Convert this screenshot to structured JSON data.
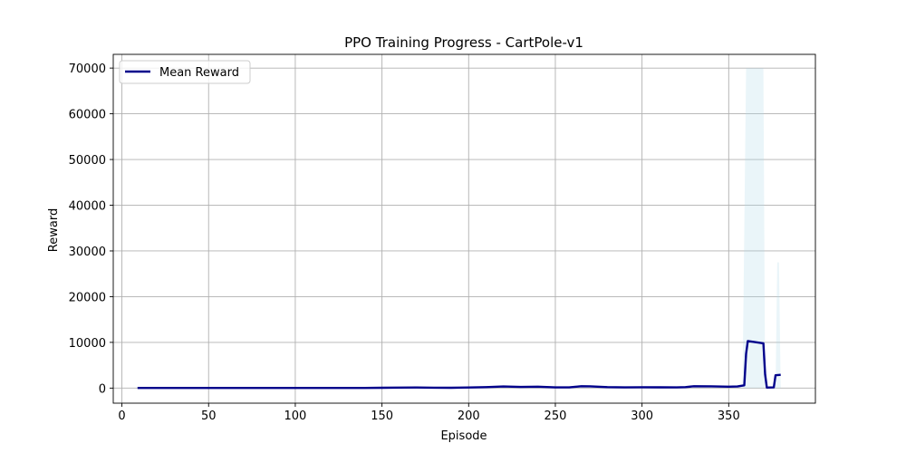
{
  "chart_data": {
    "type": "line",
    "title": "PPO Training Progress - CartPole-v1",
    "xlabel": "Episode",
    "ylabel": "Reward",
    "xlim": [
      -5,
      400
    ],
    "ylim": [
      -3300,
      73000
    ],
    "xticks": [
      0,
      50,
      100,
      150,
      200,
      250,
      300,
      350
    ],
    "yticks": [
      0,
      10000,
      20000,
      30000,
      40000,
      50000,
      60000,
      70000
    ],
    "grid": true,
    "legend": {
      "placement": "upper-left",
      "entries": [
        "Mean Reward"
      ]
    },
    "colors": {
      "line": "#00008b",
      "band": "#add8e6",
      "grid": "#b0b0b0"
    },
    "series": [
      {
        "name": "Mean Reward",
        "x": [
          9,
          20,
          30,
          40,
          50,
          60,
          70,
          80,
          90,
          100,
          110,
          120,
          130,
          140,
          150,
          160,
          170,
          180,
          190,
          200,
          210,
          220,
          230,
          240,
          250,
          258,
          265,
          270,
          280,
          290,
          300,
          310,
          320,
          325,
          330,
          340,
          350,
          355,
          359,
          360,
          361,
          370,
          371,
          372,
          376,
          377,
          380
        ],
        "values": [
          20,
          22,
          25,
          22,
          30,
          22,
          25,
          25,
          25,
          28,
          25,
          30,
          25,
          30,
          60,
          100,
          120,
          80,
          60,
          120,
          200,
          350,
          250,
          300,
          150,
          150,
          400,
          380,
          200,
          150,
          180,
          160,
          150,
          200,
          400,
          380,
          300,
          350,
          600,
          7500,
          10300,
          9800,
          3000,
          100,
          150,
          2800,
          2900
        ]
      }
    ],
    "band": {
      "x": [
        9,
        50,
        100,
        150,
        200,
        220,
        240,
        258,
        265,
        270,
        300,
        320,
        330,
        350,
        358,
        360,
        361,
        370,
        371,
        372,
        376,
        377,
        378,
        379,
        380
      ],
      "lower": [
        0,
        0,
        0,
        0,
        50,
        100,
        80,
        50,
        100,
        100,
        50,
        50,
        100,
        50,
        100,
        0,
        0,
        0,
        0,
        0,
        0,
        0,
        0,
        0,
        0
      ],
      "upper": [
        60,
        70,
        70,
        120,
        300,
        500,
        450,
        300,
        700,
        650,
        300,
        300,
        600,
        500,
        800,
        70000,
        70000,
        70000,
        0,
        0,
        0,
        0,
        27500,
        27500,
        0
      ]
    }
  }
}
